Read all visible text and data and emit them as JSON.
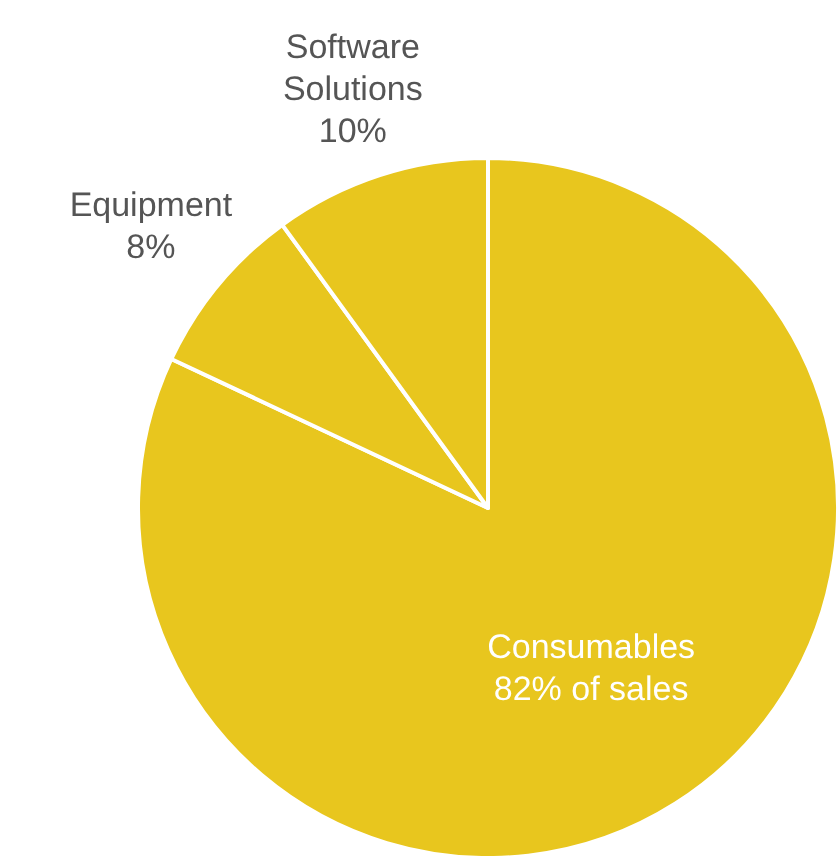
{
  "chart_data": {
    "type": "pie",
    "categories": [
      "Consumables",
      "Equipment",
      "Software Solutions"
    ],
    "values": [
      82,
      8,
      10
    ],
    "colors": [
      "#e8c61e",
      "#e8c61e",
      "#e8c61e"
    ],
    "value_labels": [
      "82% of sales",
      "8%",
      "10%"
    ]
  }
}
